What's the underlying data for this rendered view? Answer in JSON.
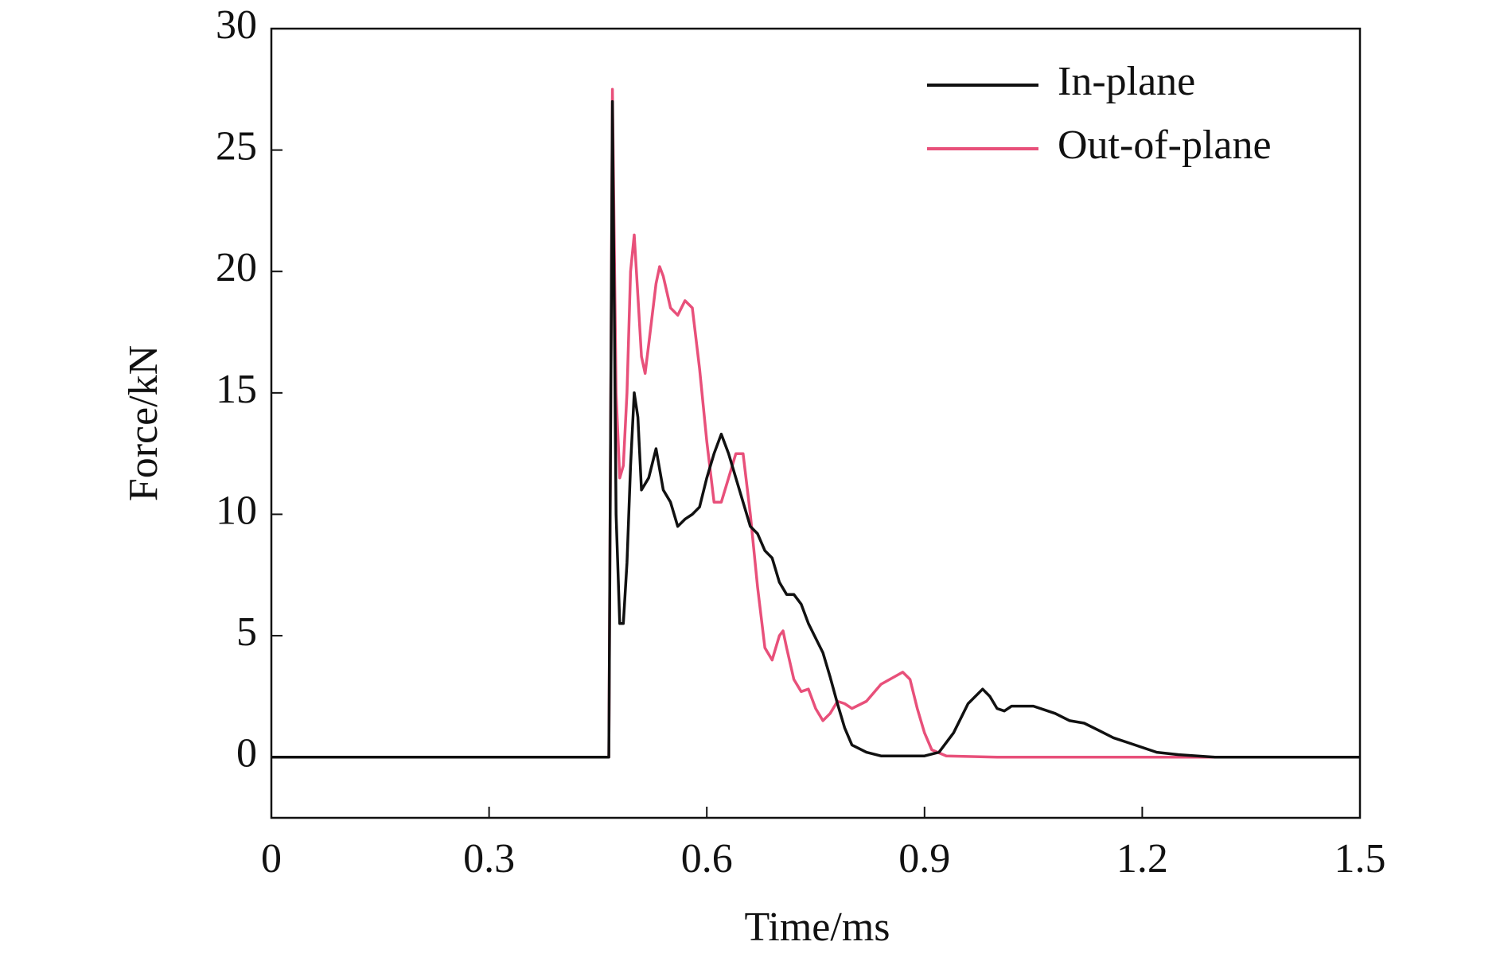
{
  "chart_data": {
    "type": "line",
    "xlabel": "Time/ms",
    "ylabel": "Force/kN",
    "xlim": [
      0,
      1.5
    ],
    "xticks": [
      0,
      0.3,
      0.6,
      0.9,
      1.2,
      1.5
    ],
    "ylim": [
      -2.5,
      30
    ],
    "yticks": [
      0,
      5,
      10,
      15,
      20,
      25,
      30
    ],
    "legend": "upper right",
    "grid": false,
    "series": [
      {
        "name": "In-plane",
        "color": "#111111",
        "x": [
          0,
          0.465,
          0.47,
          0.475,
          0.48,
          0.485,
          0.49,
          0.495,
          0.5,
          0.505,
          0.51,
          0.52,
          0.53,
          0.54,
          0.55,
          0.56,
          0.57,
          0.58,
          0.59,
          0.6,
          0.61,
          0.62,
          0.63,
          0.64,
          0.65,
          0.66,
          0.67,
          0.68,
          0.69,
          0.7,
          0.71,
          0.72,
          0.73,
          0.74,
          0.75,
          0.76,
          0.77,
          0.78,
          0.79,
          0.8,
          0.82,
          0.84,
          0.9,
          0.92,
          0.94,
          0.96,
          0.98,
          0.99,
          1.0,
          1.01,
          1.02,
          1.05,
          1.08,
          1.1,
          1.12,
          1.14,
          1.16,
          1.18,
          1.2,
          1.22,
          1.25,
          1.3,
          1.5
        ],
        "values": [
          0,
          0,
          27,
          10,
          5.5,
          5.5,
          8,
          12,
          15,
          14,
          11,
          11.5,
          12.7,
          11,
          10.5,
          9.5,
          9.8,
          10,
          10.3,
          11.5,
          12.5,
          13.3,
          12.5,
          11.5,
          10.5,
          9.5,
          9.2,
          8.5,
          8.2,
          7.2,
          6.7,
          6.7,
          6.3,
          5.5,
          4.9,
          4.3,
          3.3,
          2.2,
          1.2,
          0.5,
          0.2,
          0.05,
          0.05,
          0.2,
          1.0,
          2.2,
          2.8,
          2.5,
          2.0,
          1.9,
          2.1,
          2.1,
          1.8,
          1.5,
          1.4,
          1.1,
          0.8,
          0.6,
          0.4,
          0.2,
          0.1,
          0,
          0
        ]
      },
      {
        "name": "Out-of-plane",
        "color": "#e8507a",
        "x": [
          0,
          0.465,
          0.47,
          0.475,
          0.48,
          0.485,
          0.49,
          0.495,
          0.5,
          0.505,
          0.51,
          0.515,
          0.52,
          0.53,
          0.535,
          0.54,
          0.55,
          0.56,
          0.57,
          0.58,
          0.59,
          0.6,
          0.61,
          0.62,
          0.63,
          0.64,
          0.65,
          0.66,
          0.67,
          0.68,
          0.69,
          0.7,
          0.705,
          0.71,
          0.72,
          0.73,
          0.74,
          0.75,
          0.76,
          0.77,
          0.78,
          0.79,
          0.8,
          0.82,
          0.84,
          0.87,
          0.88,
          0.89,
          0.9,
          0.91,
          0.93,
          1.0,
          1.5
        ],
        "values": [
          0,
          0,
          27.5,
          15,
          11.5,
          12,
          15,
          20,
          21.5,
          19,
          16.5,
          15.8,
          17,
          19.5,
          20.2,
          19.8,
          18.5,
          18.2,
          18.8,
          18.5,
          16,
          13,
          10.5,
          10.5,
          11.5,
          12.5,
          12.5,
          10,
          7,
          4.5,
          4.0,
          5.0,
          5.2,
          4.5,
          3.2,
          2.7,
          2.8,
          2.0,
          1.5,
          1.8,
          2.3,
          2.2,
          2.0,
          2.3,
          3.0,
          3.5,
          3.2,
          2.0,
          1.0,
          0.3,
          0.05,
          0,
          0
        ]
      }
    ]
  }
}
